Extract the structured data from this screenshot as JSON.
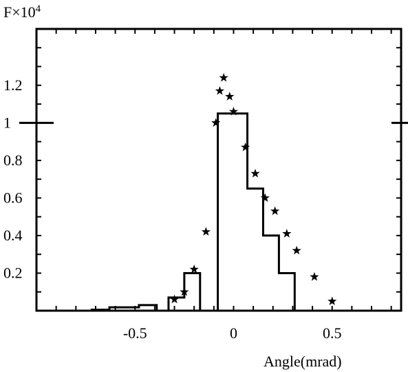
{
  "chart_data": {
    "type": "line",
    "title": "",
    "xlabel": "Angle(mrad)",
    "ylabel_base": "F×10",
    "ylabel_exponent": "4",
    "xlim": [
      -1.0,
      0.85
    ],
    "ylim": [
      0,
      1.5
    ],
    "grid": false,
    "legend": "none",
    "xticks": [
      {
        "value": -0.5,
        "label": "-0.5"
      },
      {
        "value": 0,
        "label": "0"
      },
      {
        "value": 0.5,
        "label": "0.5"
      }
    ],
    "yticks": [
      {
        "value": 0.2,
        "label": "0.2"
      },
      {
        "value": 0.4,
        "label": "0.4"
      },
      {
        "value": 0.6,
        "label": "0.6"
      },
      {
        "value": 0.8,
        "label": "0.8"
      },
      {
        "value": 1.0,
        "label": "1"
      },
      {
        "value": 1.2,
        "label": "1.2"
      }
    ],
    "series": [
      {
        "kind": "step-histogram",
        "color": "#000000",
        "bins": [
          {
            "x0": -0.72,
            "x1": -0.63,
            "y": 0.005
          },
          {
            "x0": -0.63,
            "x1": -0.48,
            "y": 0.018
          },
          {
            "x0": -0.48,
            "x1": -0.39,
            "y": 0.03
          },
          {
            "x0": -0.39,
            "x1": -0.33,
            "y": 0.0
          },
          {
            "x0": -0.33,
            "x1": -0.25,
            "y": 0.07
          },
          {
            "x0": -0.25,
            "x1": -0.17,
            "y": 0.2
          },
          {
            "x0": -0.17,
            "x1": -0.08,
            "y": 0.0
          },
          {
            "x0": -0.08,
            "x1": 0.07,
            "y": 1.05
          },
          {
            "x0": 0.07,
            "x1": 0.15,
            "y": 0.65
          },
          {
            "x0": 0.15,
            "x1": 0.23,
            "y": 0.4
          },
          {
            "x0": 0.23,
            "x1": 0.31,
            "y": 0.2
          }
        ]
      },
      {
        "kind": "scatter",
        "marker": "star",
        "color": "#000000",
        "points": [
          {
            "x": -0.3,
            "y": 0.06
          },
          {
            "x": -0.25,
            "y": 0.1
          },
          {
            "x": -0.2,
            "y": 0.22
          },
          {
            "x": -0.14,
            "y": 0.42
          },
          {
            "x": -0.09,
            "y": 1.0
          },
          {
            "x": -0.07,
            "y": 1.17
          },
          {
            "x": -0.05,
            "y": 1.24
          },
          {
            "x": -0.02,
            "y": 1.14
          },
          {
            "x": 0.0,
            "y": 1.06
          },
          {
            "x": 0.06,
            "y": 0.87
          },
          {
            "x": 0.11,
            "y": 0.73
          },
          {
            "x": 0.16,
            "y": 0.6
          },
          {
            "x": 0.21,
            "y": 0.53
          },
          {
            "x": 0.27,
            "y": 0.41
          },
          {
            "x": 0.32,
            "y": 0.32
          },
          {
            "x": 0.41,
            "y": 0.18
          },
          {
            "x": 0.5,
            "y": 0.05
          }
        ]
      }
    ]
  }
}
